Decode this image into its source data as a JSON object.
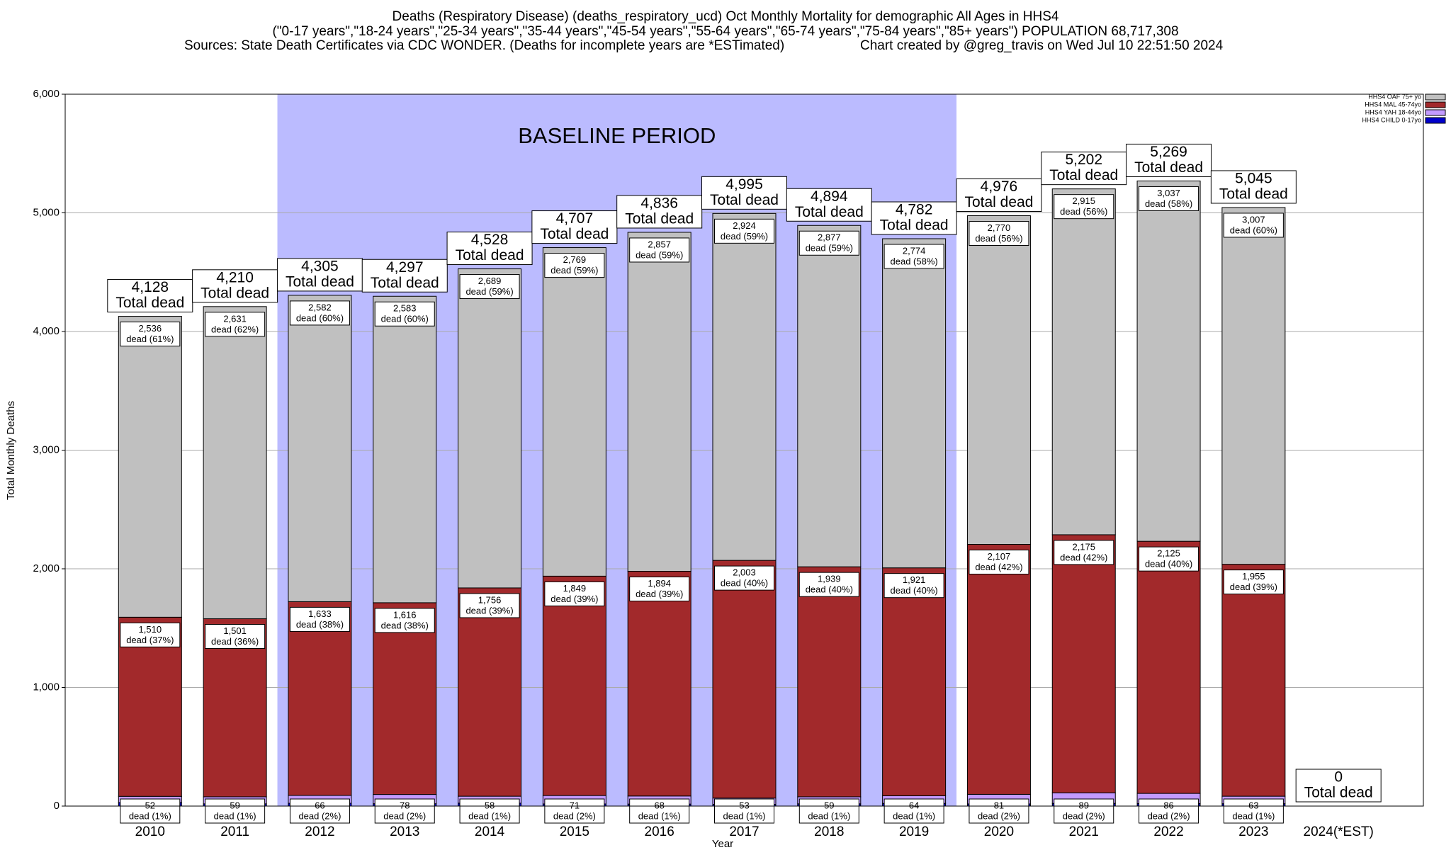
{
  "chart_data": {
    "type": "stacked_bar",
    "title": "Deaths (Respiratory Disease) (deaths_respiratory_ucd) Oct Monthly Mortality for demographic All Ages in HHS4",
    "subtitle": "(\"0-17 years\",\"18-24 years\",\"25-34 years\",\"35-44 years\",\"45-54 years\",\"55-64 years\",\"65-74 years\",\"75-84 years\",\"85+ years\") POPULATION 68,717,308",
    "source": "Sources: State Death Certificates via CDC WONDER. (Deaths for incomplete years are *ESTimated)",
    "credit": "Chart created by @greg_travis on Wed Jul 10 22:51:50 2024",
    "x_label": "Year",
    "y_label": "Total Monthly Deaths",
    "categories": [
      "2010",
      "2011",
      "2012",
      "2013",
      "2014",
      "2015",
      "2016",
      "2017",
      "2018",
      "2019",
      "2020",
      "2021",
      "2022",
      "2023",
      "2024(*EST)"
    ],
    "series": [
      {
        "name": "HHS4 CHILD 0-17yo",
        "color": "#0000cc",
        "values": [
          30,
          19,
          24,
          20,
          25,
          18,
          17,
          15,
          19,
          23,
          18,
          23,
          21,
          20,
          0
        ]
      },
      {
        "name": "HHS4 YAH 18-44yo",
        "color": "#c39bff",
        "values": [
          52,
          59,
          66,
          78,
          58,
          71,
          68,
          53,
          59,
          64,
          81,
          89,
          86,
          63,
          0
        ],
        "percent_labels": [
          "dead (1%)",
          "dead (1%)",
          "dead (2%)",
          "dead (2%)",
          "dead (1%)",
          "dead (2%)",
          "dead (1%)",
          "dead (1%)",
          "dead (1%)",
          "dead (1%)",
          "dead (2%)",
          "dead (2%)",
          "dead (2%)",
          "dead (1%)",
          null
        ]
      },
      {
        "name": "HHS4 MAL 45-74yo",
        "color": "#a2292b",
        "values": [
          1510,
          1501,
          1633,
          1616,
          1756,
          1849,
          1894,
          2003,
          1939,
          1921,
          2107,
          2175,
          2125,
          1955,
          0
        ],
        "value_labels": [
          "1,510",
          "1,501",
          "1,633",
          "1,616",
          "1,756",
          "1,849",
          "1,894",
          "2,003",
          "1,939",
          "1,921",
          "2,107",
          "2,175",
          "2,125",
          "1,955",
          null
        ],
        "percent_labels": [
          "dead (37%)",
          "dead (36%)",
          "dead (38%)",
          "dead (38%)",
          "dead (39%)",
          "dead (39%)",
          "dead (39%)",
          "dead (40%)",
          "dead (40%)",
          "dead (40%)",
          "dead (42%)",
          "dead (42%)",
          "dead (40%)",
          "dead (39%)",
          null
        ]
      },
      {
        "name": "HHS4 OAF 75+ yo",
        "color": "#c0c0c0",
        "values": [
          2536,
          2631,
          2582,
          2583,
          2689,
          2769,
          2857,
          2924,
          2877,
          2774,
          2770,
          2915,
          3037,
          3007,
          0
        ],
        "value_labels": [
          "2,536",
          "2,631",
          "2,582",
          "2,583",
          "2,689",
          "2,769",
          "2,857",
          "2,924",
          "2,877",
          "2,774",
          "2,770",
          "2,915",
          "3,037",
          "3,007",
          null
        ],
        "percent_labels": [
          "dead (61%)",
          "dead (62%)",
          "dead (60%)",
          "dead (60%)",
          "dead (59%)",
          "dead (59%)",
          "dead (59%)",
          "dead (59%)",
          "dead (59%)",
          "dead (58%)",
          "dead (56%)",
          "dead (56%)",
          "dead (58%)",
          "dead (60%)",
          null
        ]
      }
    ],
    "totals": [
      4128,
      4210,
      4305,
      4297,
      4528,
      4707,
      4836,
      4995,
      4894,
      4782,
      4976,
      5202,
      5269,
      5045,
      0
    ],
    "total_labels": [
      "4,128",
      "4,210",
      "4,305",
      "4,297",
      "4,528",
      "4,707",
      "4,836",
      "4,995",
      "4,894",
      "4,782",
      "4,976",
      "5,202",
      "5,269",
      "5,045",
      "0"
    ],
    "total_caption": "Total dead",
    "baseline": {
      "label": "BASELINE PERIOD",
      "start": "2012",
      "end": "2019",
      "color": "#bbbbff"
    },
    "ylim": [
      0,
      6000
    ],
    "yticks": [
      0,
      {
        "value": 1000,
        "label": "1,000"
      },
      {
        "value": 2000,
        "label": "2,000"
      },
      {
        "value": 3000,
        "label": "3,000"
      },
      {
        "value": 4000,
        "label": "4,000"
      },
      {
        "value": 5000,
        "label": "5,000"
      },
      {
        "value": 6000,
        "label": "6,000"
      }
    ],
    "grid": true,
    "legend": "top-right"
  }
}
